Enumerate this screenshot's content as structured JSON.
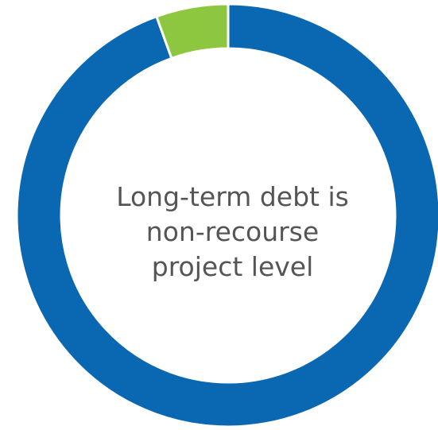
{
  "chart_data": {
    "type": "pie",
    "style": "donut",
    "center_text": [
      "Long-term debt is",
      "non-recourse",
      "project level"
    ],
    "slices": [
      {
        "value": 94.5,
        "color": "#0a67b2"
      },
      {
        "value": 5.5,
        "color": "#8dc63f"
      }
    ],
    "start_angle_deg": 0,
    "separator_color": "#ffffff"
  }
}
